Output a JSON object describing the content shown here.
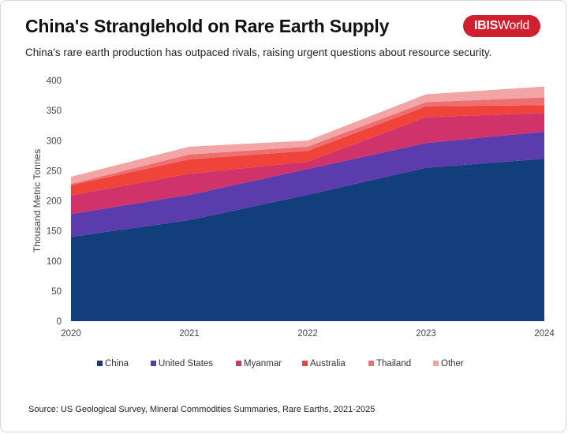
{
  "header": {
    "title": "China's Stranglehold on Rare Earth Supply",
    "subtitle": "China's rare earth production has outpaced rivals, raising urgent questions about resource security.",
    "logo_bold": "IBIS",
    "logo_rest": "World"
  },
  "footer": {
    "source": "Source: US Geological Survey, Mineral Commodities Summaries, Rare Earths, 2021-2025"
  },
  "chart_data": {
    "type": "area",
    "stacked": true,
    "title": "",
    "xlabel": "",
    "ylabel": "Thousand Metric Tonnes",
    "x": [
      "2020",
      "2021",
      "2022",
      "2023",
      "2024"
    ],
    "ylim": [
      0,
      400
    ],
    "yticks": [
      0,
      50,
      100,
      150,
      200,
      250,
      300,
      350,
      400
    ],
    "grid": false,
    "legend_position": "bottom",
    "series": [
      {
        "name": "China",
        "color": "#123e7c",
        "values": [
          140,
          168,
          210,
          255,
          270
        ]
      },
      {
        "name": "United States",
        "color": "#5b3cad",
        "values": [
          38,
          42,
          43,
          41,
          45
        ]
      },
      {
        "name": "Myanmar",
        "color": "#d0336a",
        "values": [
          31,
          35,
          12,
          43,
          31
        ]
      },
      {
        "name": "Australia",
        "color": "#f0433a",
        "values": [
          17,
          24,
          18,
          18,
          13
        ]
      },
      {
        "name": "Thailand",
        "color": "#ee6f72",
        "values": [
          2,
          8,
          7,
          7,
          13
        ]
      },
      {
        "name": "Other",
        "color": "#f3a4a4",
        "values": [
          12,
          13,
          10,
          13,
          18
        ]
      }
    ]
  }
}
